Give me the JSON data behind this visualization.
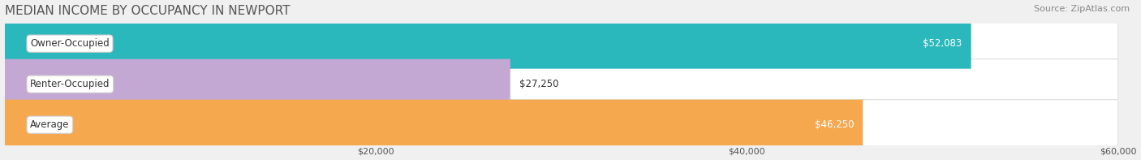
{
  "title": "MEDIAN INCOME BY OCCUPANCY IN NEWPORT",
  "source": "Source: ZipAtlas.com",
  "categories": [
    "Owner-Occupied",
    "Renter-Occupied",
    "Average"
  ],
  "values": [
    52083,
    27250,
    46250
  ],
  "labels": [
    "$52,083",
    "$27,250",
    "$46,250"
  ],
  "bar_colors": [
    "#2ab8bc",
    "#c4a8d4",
    "#f5a84e"
  ],
  "xlim": [
    0,
    60000
  ],
  "xticks": [
    20000,
    40000,
    60000
  ],
  "xticklabels": [
    "$20,000",
    "$40,000",
    "$60,000"
  ],
  "background_color": "#f0f0f0",
  "title_fontsize": 11,
  "source_fontsize": 8,
  "label_fontsize": 8.5,
  "cat_fontsize": 8.5
}
